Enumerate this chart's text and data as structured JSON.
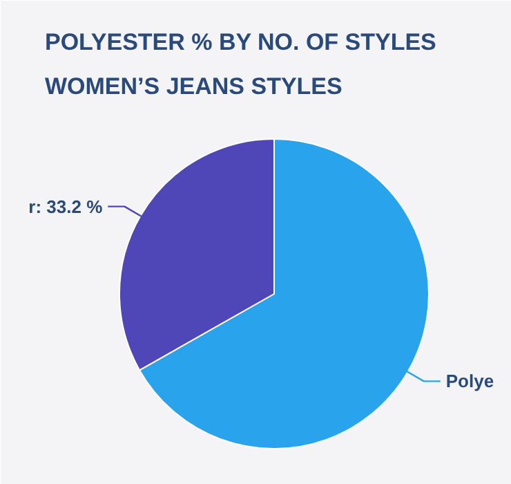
{
  "chart_data": {
    "type": "pie",
    "title": "POLYESTER % BY NO. OF STYLES",
    "subtitle": "WOMEN’S JEANS STYLES",
    "categories": [
      null,
      null
    ],
    "values": [
      66.8,
      33.2
    ],
    "colors": [
      "#29a3ec",
      "#4f46b8"
    ],
    "value_labels": [
      "Polye",
      "r: 33.2 %"
    ]
  }
}
